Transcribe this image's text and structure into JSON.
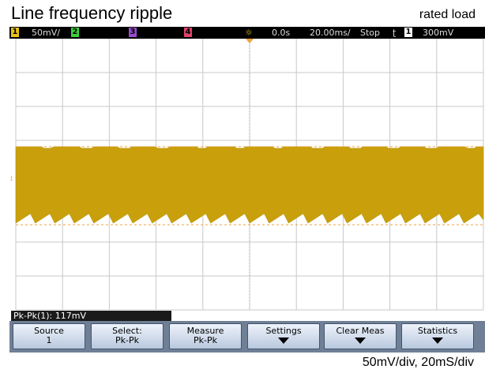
{
  "title": "Line frequency ripple",
  "corner_note": "rated load",
  "status_bar": {
    "ch1": "1",
    "ch1_scale": "50mV/",
    "ch2": "2",
    "ch3": "3",
    "ch4": "4",
    "delay": "0.0s",
    "timebase": "20.00ms/",
    "run_state": "Stop",
    "trigger_source": "1",
    "trigger_level": "300mV"
  },
  "measurement": "Pk-Pk(1): 117mV",
  "softkeys": [
    {
      "label": "Source",
      "value": "1"
    },
    {
      "label": "Select:",
      "value": "Pk-Pk"
    },
    {
      "label": "Measure",
      "value": "Pk-Pk"
    },
    {
      "label": "Settings"
    },
    {
      "label": "Clear Meas"
    },
    {
      "label": "Statistics"
    }
  ],
  "footer": "50mV/div, 20mS/div"
}
